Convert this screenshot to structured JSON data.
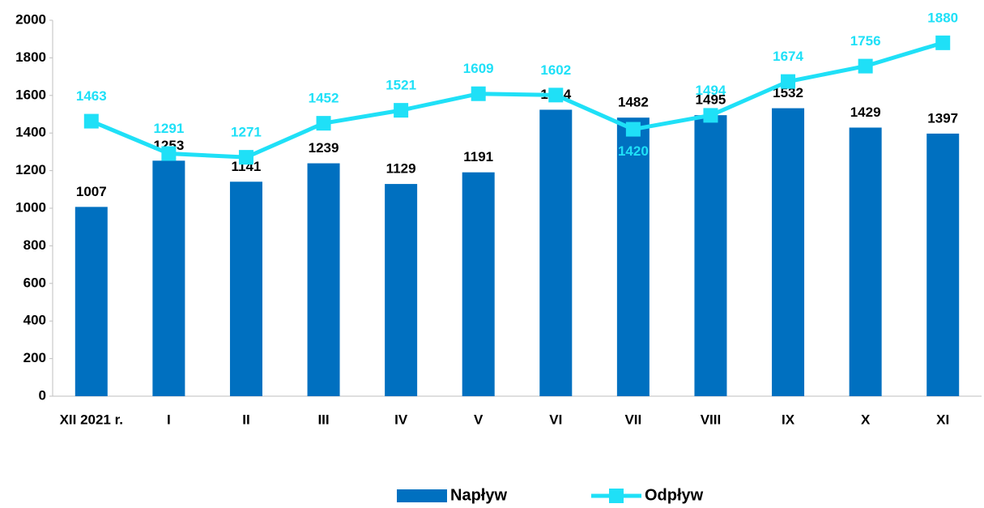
{
  "chart_data": {
    "type": "bar",
    "categories": [
      "XII 2021 r.",
      "I",
      "II",
      "III",
      "IV",
      "V",
      "VI",
      "VII",
      "VIII",
      "IX",
      "X",
      "XI"
    ],
    "series": [
      {
        "name": "Napływ",
        "type": "bar",
        "color": "#0070c0",
        "values": [
          1007,
          1253,
          1141,
          1239,
          1129,
          1191,
          1524,
          1482,
          1495,
          1532,
          1429,
          1397
        ]
      },
      {
        "name": "Odpływ",
        "type": "line",
        "color": "#1fe0f7",
        "values": [
          1463,
          1291,
          1271,
          1452,
          1521,
          1609,
          1602,
          1420,
          1494,
          1674,
          1756,
          1880
        ]
      }
    ],
    "ylim": [
      0,
      2000
    ],
    "yticks": [
      0,
      200,
      400,
      600,
      800,
      1000,
      1200,
      1400,
      1600,
      1800,
      2000
    ],
    "grid": false,
    "legend": "bottom"
  }
}
